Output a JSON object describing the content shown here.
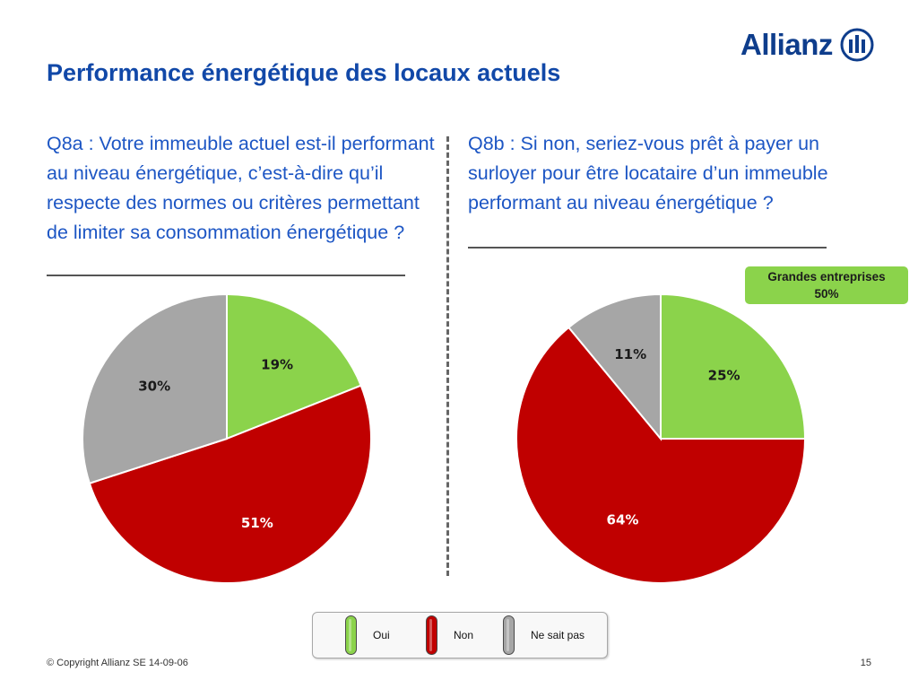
{
  "header": {
    "logo_text": "Allianz",
    "title": "Performance énergétique des locaux actuels"
  },
  "questions": {
    "q8a": "Q8a : Votre immeuble actuel est-il performant au niveau énergétique, c’est-à-dire qu’il respecte des normes ou critères permettant de limiter sa consommation énergétique ?",
    "q8b": "Q8b : Si non, seriez-vous prêt à payer un surloyer pour être locataire d’un immeuble performant au niveau énergétique ?"
  },
  "badge": {
    "line1": "Grandes entreprises",
    "line2": "50%"
  },
  "colors": {
    "oui": "#8bd34b",
    "non": "#c00000",
    "nsp": "#a6a6a6",
    "title": "#1148a8",
    "question": "#1d56c4"
  },
  "chart_data": [
    {
      "type": "pie",
      "id": "q8a",
      "categories": [
        "Oui",
        "Non",
        "Ne sait pas"
      ],
      "values": [
        19,
        51,
        30
      ],
      "labels": [
        "19%",
        "51%",
        "30%"
      ],
      "colors": [
        "#8bd34b",
        "#c00000",
        "#a6a6a6"
      ],
      "start": "12 o'clock, clockwise"
    },
    {
      "type": "pie",
      "id": "q8b",
      "categories": [
        "Oui",
        "Non",
        "Ne sait pas"
      ],
      "values": [
        25,
        64,
        11
      ],
      "labels": [
        "25%",
        "64%",
        "11%"
      ],
      "colors": [
        "#8bd34b",
        "#c00000",
        "#a6a6a6"
      ],
      "start": "12 o'clock, clockwise"
    }
  ],
  "legend": {
    "items": [
      {
        "label": "Oui",
        "color": "#8bd34b"
      },
      {
        "label": "Non",
        "color": "#c00000"
      },
      {
        "label": "Ne sait pas",
        "color": "#a6a6a6"
      }
    ]
  },
  "footer": {
    "copyright": "© Copyright Allianz SE 14-09-06",
    "page": "15"
  }
}
